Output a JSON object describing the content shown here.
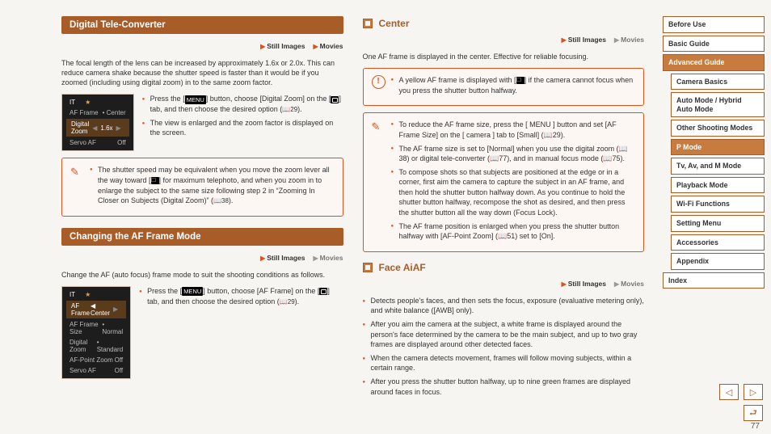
{
  "page_number": "77",
  "left": {
    "s1": {
      "title": "Digital Tele-Converter",
      "applies_still": "Still Images",
      "applies_movies": "Movies",
      "intro": "The focal length of the lens can be increased by approximately 1.6x or 2.0x. This can reduce camera shake because the shutter speed is faster than it would be if you zoomed (including using digital zoom) in to the same zoom factor.",
      "shot": {
        "tabs_a": "IT",
        "tabs_b": "★",
        "r1a": "AF Frame",
        "r1b": "• Center",
        "r2a": "Digital Zoom",
        "r2b": "1.6x",
        "r3a": "Servo AF",
        "r3b": "Off"
      },
      "steps": [
        "Press the [ MENU ] button, choose [Digital Zoom] on the [ camera ] tab, and then choose the desired option (📖29).",
        "The view is enlarged and the zoom factor is displayed on the screen."
      ],
      "note": "The shutter speed may be equivalent when you move the zoom lever all the way toward [ tele ] for maximum telephoto, and when you zoom in to enlarge the subject to the same size following step 2 in “Zooming In Closer on Subjects (Digital Zoom)” (📖38)."
    },
    "s2": {
      "title": "Changing the AF Frame Mode",
      "applies_still": "Still Images",
      "applies_movies": "Movies",
      "intro": "Change the AF (auto focus) frame mode to suit the shooting conditions as follows.",
      "shot": {
        "tabs_a": "IT",
        "tabs_b": "★",
        "r1a": "AF Frame",
        "r1b": "◀ Center",
        "r2a": "AF Frame Size",
        "r2b": "• Normal",
        "r3a": "Digital Zoom",
        "r3b": "• Standard",
        "r4a": "AF-Point Zoom",
        "r4b": "Off",
        "r5a": "Servo AF",
        "r5b": "Off"
      },
      "step": "Press the [ MENU ] button, choose [AF Frame] on the [ camera ] tab, and then choose the desired option (📖29)."
    }
  },
  "right": {
    "center": {
      "title": "Center",
      "applies_still": "Still Images",
      "applies_movies": "Movies",
      "intro": "One AF frame is displayed in the center. Effective for reliable focusing.",
      "warn": "A yellow AF frame is displayed with [ ! ] if the camera cannot focus when you press the shutter button halfway.",
      "tips": [
        "To reduce the AF frame size, press the [ MENU ] button and set [AF Frame Size] on the [ camera ] tab to [Small] (📖29).",
        "The AF frame size is set to [Normal] when you use the digital zoom (📖38) or digital tele-converter (📖77), and in manual focus mode (📖75).",
        "To compose shots so that subjects are positioned at the edge or in a corner, first aim the camera to capture the subject in an AF frame, and then hold the shutter button halfway down. As you continue to hold the shutter button halfway, recompose the shot as desired, and then press the shutter button all the way down (Focus Lock).",
        "The AF frame position is enlarged when you press the shutter button halfway with [AF-Point Zoom] (📖51) set to [On]."
      ]
    },
    "face": {
      "title": "Face AiAF",
      "applies_still": "Still Images",
      "applies_movies": "Movies",
      "bullets": [
        "Detects people's faces, and then sets the focus, exposure (evaluative metering only), and white balance ([AWB] only).",
        "After you aim the camera at the subject, a white frame is displayed around the person's face determined by the camera to be the main subject, and up to two gray frames are displayed around other detected faces.",
        "When the camera detects movement, frames will follow moving subjects, within a certain range.",
        "After you press the shutter button halfway, up to nine green frames are displayed around faces in focus."
      ]
    }
  },
  "sidebar": {
    "items": [
      {
        "label": "Before Use",
        "sub": false,
        "active": false
      },
      {
        "label": "Basic Guide",
        "sub": false,
        "active": false
      },
      {
        "label": "Advanced Guide",
        "sub": false,
        "active": true
      },
      {
        "label": "Camera Basics",
        "sub": true,
        "active": false
      },
      {
        "label": "Auto Mode / Hybrid Auto Mode",
        "sub": true,
        "active": false
      },
      {
        "label": "Other Shooting Modes",
        "sub": true,
        "active": false
      },
      {
        "label": "P Mode",
        "sub": true,
        "active": true
      },
      {
        "label": "Tv, Av, and M Mode",
        "sub": true,
        "active": false
      },
      {
        "label": "Playback Mode",
        "sub": true,
        "active": false
      },
      {
        "label": "Wi-Fi Functions",
        "sub": true,
        "active": false
      },
      {
        "label": "Setting Menu",
        "sub": true,
        "active": false
      },
      {
        "label": "Accessories",
        "sub": true,
        "active": false
      },
      {
        "label": "Appendix",
        "sub": true,
        "active": false
      },
      {
        "label": "Index",
        "sub": false,
        "active": false
      }
    ]
  }
}
